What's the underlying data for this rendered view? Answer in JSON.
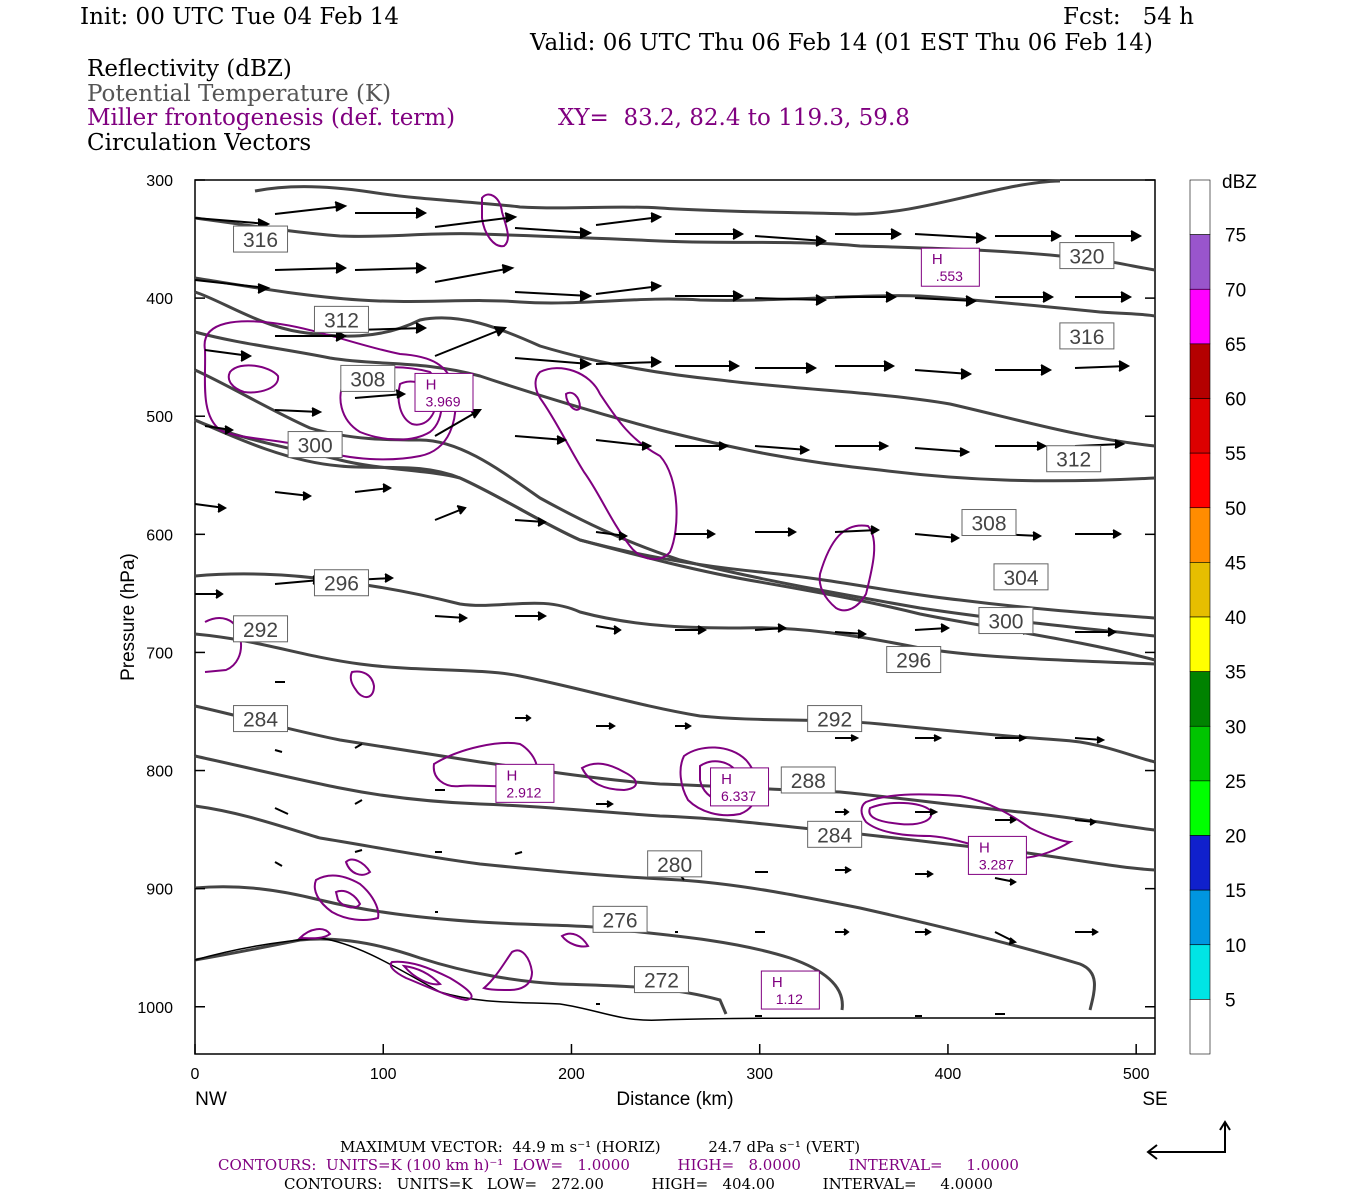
{
  "header": {
    "init": "Init: 00 UTC Tue 04 Feb 14",
    "fcst": "Fcst:   54 h",
    "valid": "Valid: 06 UTC Thu 06 Feb 14 (01 EST Thu 06 Feb 14)",
    "field1": "Reflectivity (dBZ)",
    "field2": "Potential Temperature (K)",
    "field3": "Miller frontogenesis (def. term)",
    "xy": "XY=  83.2, 82.4 to 119.3, 59.8",
    "field4": "Circulation Vectors"
  },
  "colors": {
    "theta": "#444444",
    "fronto": "#800080",
    "vector": "#000000"
  },
  "chart_data": {
    "type": "line",
    "xlabel": "Distance (km)",
    "ylabel": "Pressure (hPa)",
    "xlim": [
      0,
      510
    ],
    "ylim": [
      1040,
      300
    ],
    "x_ticks": [
      0,
      100,
      200,
      300,
      400,
      500
    ],
    "y_ticks": [
      300,
      400,
      500,
      600,
      700,
      800,
      900,
      1000
    ],
    "x_end_labels": {
      "left": "NW",
      "right": "SE"
    },
    "theta_contour_labels": [
      {
        "text": "316",
        "x": 21,
        "p": 350
      },
      {
        "text": "320",
        "x": 460,
        "p": 364
      },
      {
        "text": "312",
        "x": 64,
        "p": 418
      },
      {
        "text": "316",
        "x": 460,
        "p": 432
      },
      {
        "text": "308",
        "x": 78,
        "p": 468
      },
      {
        "text": "300",
        "x": 50,
        "p": 524
      },
      {
        "text": "312",
        "x": 453,
        "p": 536
      },
      {
        "text": "308",
        "x": 408,
        "p": 590
      },
      {
        "text": "304",
        "x": 425,
        "p": 636
      },
      {
        "text": "296",
        "x": 64,
        "p": 641
      },
      {
        "text": "300",
        "x": 417,
        "p": 673
      },
      {
        "text": "292",
        "x": 21,
        "p": 680
      },
      {
        "text": "296",
        "x": 368,
        "p": 706
      },
      {
        "text": "284",
        "x": 21,
        "p": 756
      },
      {
        "text": "292",
        "x": 326,
        "p": 756
      },
      {
        "text": "288",
        "x": 312,
        "p": 808
      },
      {
        "text": "284",
        "x": 326,
        "p": 854
      },
      {
        "text": "280",
        "x": 241,
        "p": 879
      },
      {
        "text": "276",
        "x": 212,
        "p": 926
      },
      {
        "text": "272",
        "x": 234,
        "p": 977
      }
    ],
    "fronto_maxima": [
      {
        "label": "H",
        "value": ".553",
        "x": 388,
        "p": 373
      },
      {
        "label": "H",
        "value": "3.969",
        "x": 119,
        "p": 479
      },
      {
        "label": "H",
        "value": "2.912",
        "x": 162,
        "p": 810
      },
      {
        "label": "H",
        "value": "6.337",
        "x": 276,
        "p": 813
      },
      {
        "label": "H",
        "value": "3.287",
        "x": 413,
        "p": 871
      },
      {
        "label": "H",
        "value": "1.12",
        "x": 303,
        "p": 985
      }
    ],
    "colorbar": {
      "title": "dBZ",
      "levels": [
        5,
        10,
        15,
        20,
        25,
        30,
        35,
        40,
        45,
        50,
        55,
        60,
        65,
        70,
        75
      ],
      "colors": [
        "#ffffff",
        "#00e5e5",
        "#0096e0",
        "#1020cc",
        "#00ff00",
        "#00c400",
        "#008200",
        "#ffff00",
        "#e6be00",
        "#ff8c00",
        "#ff0000",
        "#dc0000",
        "#b40000",
        "#ff00ff",
        "#9955cc",
        "#ffffff"
      ]
    }
  },
  "footer": {
    "line1": "MAXIMUM VECTOR:  44.9 m s⁻¹ (HORIZ)          24.7 dPa s⁻¹ (VERT)",
    "line2": "CONTOURS:  UNITS=K (100 km h)⁻¹  LOW=   1.0000          HIGH=   8.0000          INTERVAL=     1.0000",
    "line3": "CONTOURS:   UNITS=K   LOW=   272.00          HIGH=   404.00          INTERVAL=     4.0000"
  }
}
